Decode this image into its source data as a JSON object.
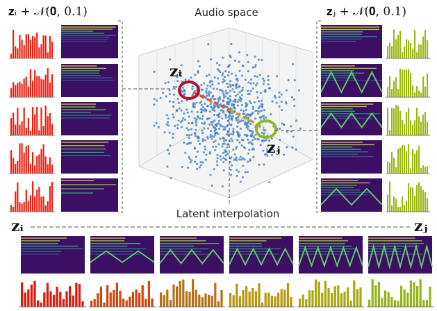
{
  "left_panel": {
    "label": "𝐳ᵢ + 𝒩(𝟎, 0.1)"
  },
  "right_panel": {
    "label": "𝐳ⱼ + 𝒩(𝟎, 0.1)"
  },
  "audio_space": {
    "title": "Audio space",
    "point_i": "𝐳ᵢ",
    "point_j": "𝐳ⱼ"
  },
  "interpolation": {
    "title": "Latent interpolation",
    "start": "𝐳ᵢ",
    "end": "𝐳ⱼ"
  }
}
